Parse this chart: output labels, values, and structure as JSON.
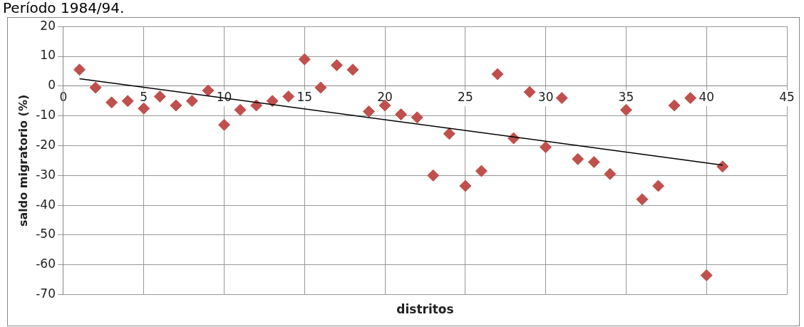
{
  "chart_data": {
    "type": "scatter",
    "title": "Período 1984/94.",
    "xlabel": "distritos",
    "ylabel": "saldo migratorio (%)",
    "xlim": [
      0,
      45
    ],
    "xticks": [
      0,
      5,
      10,
      15,
      20,
      25,
      30,
      35,
      40,
      45
    ],
    "ylim": [
      -70,
      20
    ],
    "yticks": [
      -70,
      -60,
      -50,
      -40,
      -30,
      -20,
      -10,
      0,
      10,
      20
    ],
    "grid": true,
    "legend": false,
    "marker": "diamond",
    "series": [
      {
        "color": "#c0504d",
        "x": [
          1,
          2,
          3,
          4,
          5,
          6,
          7,
          8,
          9,
          10,
          11,
          12,
          13,
          14,
          15,
          16,
          17,
          18,
          19,
          20,
          21,
          22,
          23,
          24,
          25,
          26,
          27,
          28,
          29,
          30,
          31,
          32,
          33,
          34,
          35,
          36,
          37,
          38,
          39,
          40,
          41
        ],
        "values": [
          5.5,
          -0.5,
          -5.5,
          -5,
          -7.5,
          -3.5,
          -6.5,
          -5,
          -1.5,
          -13,
          -8,
          -6.5,
          -5,
          -3.5,
          9,
          -0.5,
          7,
          5.5,
          -8.5,
          -6.5,
          -9.5,
          -10.5,
          -30,
          -16,
          -33.5,
          -28.5,
          4,
          -17.5,
          -2,
          -20.5,
          -4,
          -24.5,
          -25.5,
          -29.5,
          -8,
          -38,
          -33.5,
          -6.5,
          -4,
          -63.5,
          -27
        ]
      },
      {
        "type": "line",
        "color": "#000000",
        "x": [
          1,
          41
        ],
        "values": [
          2.5,
          -26.5
        ],
        "marker": "none",
        "line_style": "solid"
      }
    ]
  }
}
